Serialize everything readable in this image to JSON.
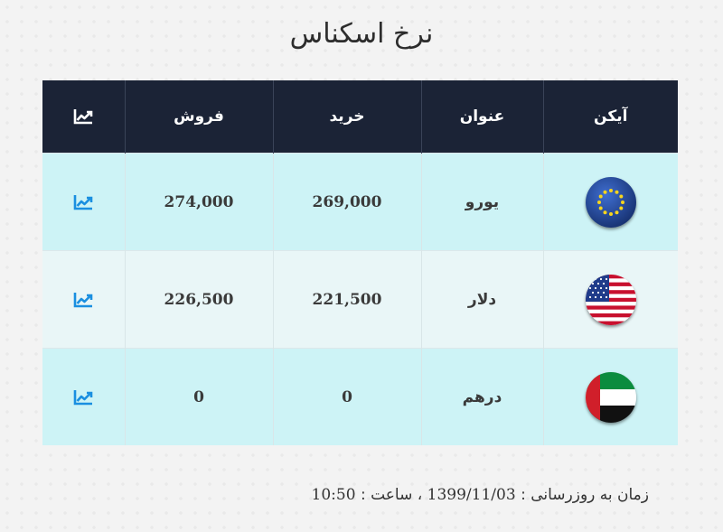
{
  "page": {
    "title": "نرخ اسکناس"
  },
  "table": {
    "headers": {
      "icon": "آیکن",
      "name": "عنوان",
      "buy": "خرید",
      "sell": "فروش",
      "chart_icon": "chart-line-icon"
    },
    "rows": [
      {
        "flag": "eu-flag-icon",
        "name": "یورو",
        "buy": "269,000",
        "sell": "274,000",
        "chart_icon": "chart-line-icon"
      },
      {
        "flag": "us-flag-icon",
        "name": "دلار",
        "buy": "221,500",
        "sell": "226,500",
        "chart_icon": "chart-line-icon"
      },
      {
        "flag": "ae-flag-icon",
        "name": "درهم",
        "buy": "0",
        "sell": "0",
        "chart_icon": "chart-line-icon"
      }
    ]
  },
  "footer": {
    "label": "زمان به روزرسانی :",
    "date": "1399/11/03",
    "separator": "،",
    "time_label": "ساعت :",
    "time": "10:50"
  },
  "colors": {
    "header_bg": "#1b2336",
    "row_bg": "#cdf3f6",
    "row_alt_bg": "#e9f6f7",
    "chart_icon": "#1a8fe0"
  }
}
